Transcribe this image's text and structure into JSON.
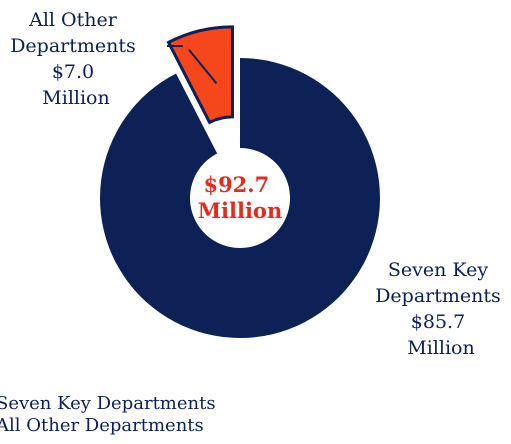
{
  "chart_data": {
    "type": "pie",
    "style": "donut",
    "center_label": [
      "$92.7",
      "Million"
    ],
    "slices": [
      {
        "name": "Seven Key Departments",
        "value": 85.7,
        "label": [
          "Seven Key",
          "Departments",
          "$85.7",
          "Million"
        ],
        "color": "#0d2157"
      },
      {
        "name": "All Other Departments",
        "value": 7.0,
        "label": [
          "All Other",
          "Departments",
          "$7.0",
          "Million"
        ],
        "color": "#f5461c",
        "exploded": true
      }
    ],
    "legend": [
      "Seven Key Departments",
      "All Other Departments"
    ],
    "center_color": "#e8291c"
  }
}
